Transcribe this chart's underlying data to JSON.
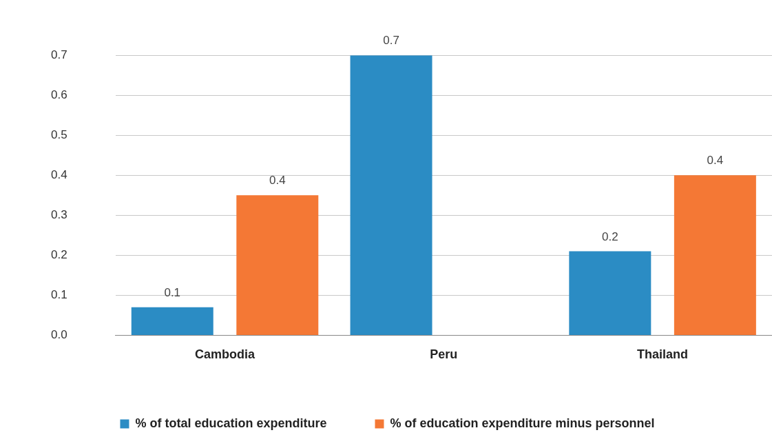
{
  "chart_data": {
    "type": "bar",
    "categories": [
      "Cambodia",
      "Peru",
      "Thailand"
    ],
    "series": [
      {
        "name": "% of total education expenditure",
        "color": "#2b8cc4",
        "values": [
          0.07,
          0.7,
          0.21
        ],
        "value_labels": [
          "0.1",
          "0.7",
          "0.2"
        ]
      },
      {
        "name": "% of education expenditure minus personnel",
        "color": "#f47835",
        "values": [
          0.35,
          null,
          0.4
        ],
        "value_labels": [
          "0.4",
          null,
          "0.4"
        ]
      }
    ],
    "ylim": [
      0,
      0.7
    ],
    "yticks": [
      {
        "value": 0,
        "label": "0.0"
      },
      0.1,
      0.2,
      0.3,
      0.4,
      0.5,
      0.6,
      0.7
    ],
    "grid": "y",
    "legend": "bottom"
  }
}
